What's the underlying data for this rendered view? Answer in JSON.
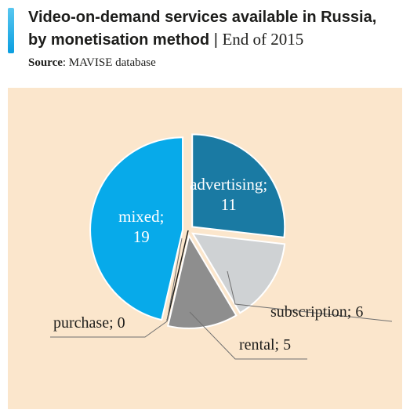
{
  "title": {
    "line1": "Video-on-demand services available in Russia,",
    "line2": "by monetisation method",
    "separator": "|",
    "period": "End of 2015"
  },
  "source": {
    "label": "Source",
    "text": ": MAVISE database"
  },
  "colors": {
    "accent": "#0a9ee0",
    "panel": "#fbe6cc"
  },
  "chart_data": {
    "type": "pie",
    "title": "",
    "slices": [
      {
        "label": "advertising",
        "value": 11,
        "color": "#1a7aa3"
      },
      {
        "label": "subscription",
        "value": 6,
        "color": "#cfd2d4"
      },
      {
        "label": "rental",
        "value": 5,
        "color": "#8e8e8e"
      },
      {
        "label": "purchase",
        "value": 0,
        "color": "#1d1d1b"
      },
      {
        "label": "mixed",
        "value": 19,
        "color": "#07aaea"
      }
    ],
    "legend": "none",
    "separator": ";"
  }
}
